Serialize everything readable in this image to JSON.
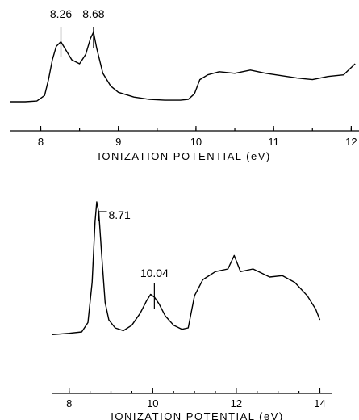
{
  "chart_data": [
    {
      "type": "line",
      "xlabel": "IONIZATION POTENTIAL (eV)",
      "ylabel": "",
      "xlim": [
        7.6,
        12.1
      ],
      "x_ticks": [
        "8",
        "9",
        "10",
        "11",
        "12"
      ],
      "annotations": [
        {
          "text": "8.26",
          "x": 8.26
        },
        {
          "text": "8.68",
          "x": 8.68
        }
      ],
      "series": [
        {
          "x": [
            7.6,
            7.8,
            7.95,
            8.05,
            8.1,
            8.15,
            8.2,
            8.26,
            8.32,
            8.4,
            8.5,
            8.58,
            8.64,
            8.68,
            8.72,
            8.8,
            8.9,
            9.0,
            9.2,
            9.4,
            9.6,
            9.8,
            9.9,
            9.98,
            10.05,
            10.15,
            10.3,
            10.5,
            10.7,
            10.9,
            11.1,
            11.3,
            11.5,
            11.7,
            11.9,
            12.05
          ],
          "y": [
            0.02,
            0.02,
            0.03,
            0.1,
            0.3,
            0.55,
            0.72,
            0.78,
            0.68,
            0.55,
            0.5,
            0.62,
            0.82,
            0.9,
            0.7,
            0.38,
            0.22,
            0.14,
            0.08,
            0.05,
            0.04,
            0.04,
            0.05,
            0.12,
            0.3,
            0.36,
            0.4,
            0.38,
            0.42,
            0.38,
            0.35,
            0.32,
            0.3,
            0.34,
            0.36,
            0.5
          ]
        }
      ]
    },
    {
      "type": "line",
      "xlabel": "IONIZATION POTENTIAL (eV)",
      "ylabel": "",
      "xlim": [
        7.6,
        14.3
      ],
      "x_ticks": [
        "8",
        "10",
        "12",
        "14"
      ],
      "annotations": [
        {
          "text": "8.71",
          "x": 8.71
        },
        {
          "text": "10.04",
          "x": 10.04
        }
      ],
      "series": [
        {
          "x": [
            7.6,
            8.0,
            8.3,
            8.45,
            8.55,
            8.62,
            8.66,
            8.71,
            8.78,
            8.86,
            8.95,
            9.1,
            9.3,
            9.5,
            9.7,
            9.85,
            9.95,
            10.04,
            10.15,
            10.3,
            10.5,
            10.7,
            10.85,
            11.0,
            11.2,
            11.5,
            11.8,
            11.95,
            12.1,
            12.4,
            12.8,
            13.1,
            13.4,
            13.7,
            13.9,
            14.0
          ],
          "y": [
            0.01,
            0.02,
            0.03,
            0.1,
            0.4,
            0.85,
            1.0,
            0.92,
            0.6,
            0.25,
            0.12,
            0.06,
            0.04,
            0.08,
            0.17,
            0.26,
            0.31,
            0.29,
            0.24,
            0.15,
            0.08,
            0.05,
            0.06,
            0.3,
            0.42,
            0.48,
            0.5,
            0.6,
            0.48,
            0.5,
            0.44,
            0.45,
            0.4,
            0.3,
            0.2,
            0.12
          ]
        }
      ]
    }
  ]
}
